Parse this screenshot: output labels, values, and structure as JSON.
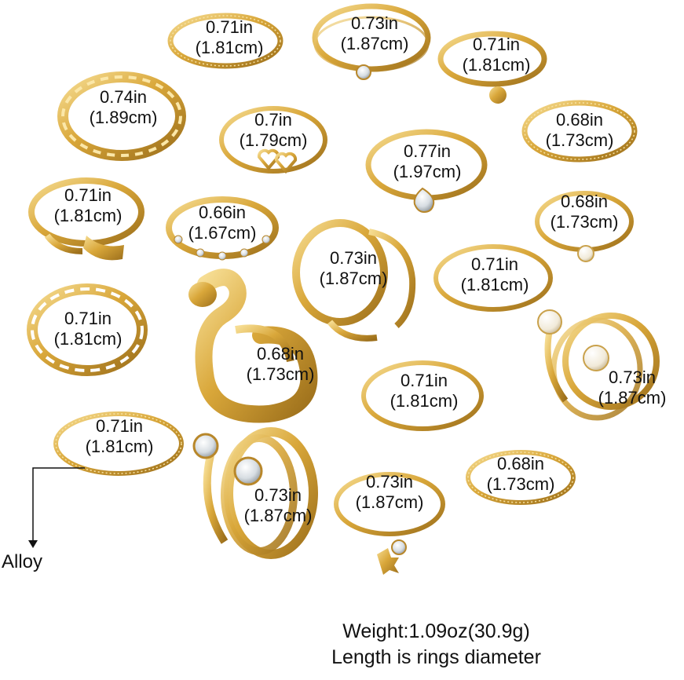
{
  "image": {
    "colors": {
      "gold": "#d9a73a",
      "gold_light": "#f4d889",
      "gold_dark": "#9c6f1b",
      "stone": "#e8eef2",
      "pearl": "#f6f1e7"
    },
    "rings": [
      {
        "id": "r1",
        "inches": "0.71in",
        "cm": "(1.81cm)"
      },
      {
        "id": "r2",
        "inches": "0.73in",
        "cm": "(1.87cm)"
      },
      {
        "id": "r3",
        "inches": "0.71in",
        "cm": "(1.81cm)"
      },
      {
        "id": "r4",
        "inches": "0.74in",
        "cm": "(1.89cm)"
      },
      {
        "id": "r5",
        "inches": "0.7in",
        "cm": "(1.79cm)"
      },
      {
        "id": "r6",
        "inches": "0.68in",
        "cm": "(1.73cm)"
      },
      {
        "id": "r7",
        "inches": "0.77in",
        "cm": "(1.97cm)"
      },
      {
        "id": "r8",
        "inches": "0.71in",
        "cm": "(1.81cm)"
      },
      {
        "id": "r9",
        "inches": "0.66in",
        "cm": "(1.67cm)"
      },
      {
        "id": "r10",
        "inches": "0.68in",
        "cm": "(1.73cm)"
      },
      {
        "id": "r11",
        "inches": "0.73in",
        "cm": "(1.87cm)"
      },
      {
        "id": "r12",
        "inches": "0.71in",
        "cm": "(1.81cm)"
      },
      {
        "id": "r13",
        "inches": "0.71in",
        "cm": "(1.81cm)"
      },
      {
        "id": "r14",
        "inches": "0.68in",
        "cm": "(1.73cm)"
      },
      {
        "id": "r15",
        "inches": "0.73in",
        "cm": "(1.87cm)"
      },
      {
        "id": "r16",
        "inches": "0.71in",
        "cm": "(1.81cm)"
      },
      {
        "id": "r17",
        "inches": "0.71in",
        "cm": "(1.81cm)"
      },
      {
        "id": "r18",
        "inches": "0.73in",
        "cm": "(1.87cm)"
      },
      {
        "id": "r19",
        "inches": "0.68in",
        "cm": "(1.73cm)"
      },
      {
        "id": "r20",
        "inches": "0.73in",
        "cm": "(1.87cm)"
      }
    ],
    "material_label": "Alloy",
    "weight_text": "Weight:1.09oz(30.9g)",
    "note_text": "Length is rings diameter"
  }
}
